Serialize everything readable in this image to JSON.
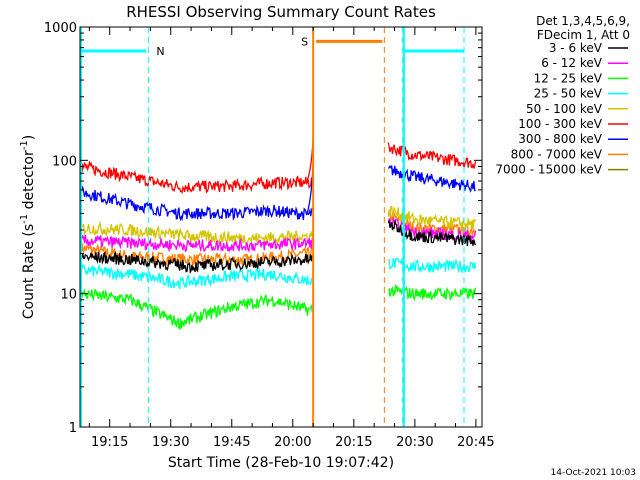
{
  "chart_data": {
    "type": "line",
    "title": "RHESSI Observing Summary Count Rates",
    "xlabel": "Start Time (28-Feb-10 19:07:42)",
    "ylabel_parts": [
      "Count Rate (s",
      "-1",
      " detector",
      "-1",
      ")"
    ],
    "ylabel": "Count Rate (s-1 detector-1)",
    "y_scale": "log",
    "ylim": [
      1,
      1000
    ],
    "y_ticks": [
      {
        "value": 1,
        "label": "1"
      },
      {
        "value": 10,
        "label": "10"
      },
      {
        "value": 100,
        "label": "100"
      },
      {
        "value": 1000,
        "label": "1000"
      }
    ],
    "xlim": [
      "19:07:42",
      "20:46:30"
    ],
    "x_ticks": [
      "19:15",
      "19:30",
      "19:45",
      "20:00",
      "20:15",
      "20:30",
      "20:45"
    ],
    "legend_header": [
      "Det 1,3,4,5,6,9,",
      "FDecim 1, Att 0"
    ],
    "legend_position": "right",
    "series": [
      {
        "name": "3 - 6 keV",
        "color": "#000000",
        "points": [
          [
            "19:08",
            19
          ],
          [
            "19:20",
            18
          ],
          [
            "19:35",
            16
          ],
          [
            "19:50",
            17
          ],
          [
            "20:04",
            18
          ],
          [
            "20:24",
            33
          ],
          [
            "20:30",
            27
          ],
          [
            "20:45",
            25
          ]
        ]
      },
      {
        "name": "6 - 12 keV",
        "color": "#ff00ff",
        "points": [
          [
            "19:08",
            25
          ],
          [
            "19:20",
            24
          ],
          [
            "19:35",
            23
          ],
          [
            "19:50",
            23
          ],
          [
            "20:04",
            24
          ],
          [
            "20:24",
            34
          ],
          [
            "20:30",
            29
          ],
          [
            "20:45",
            27
          ]
        ]
      },
      {
        "name": "12 - 25 keV",
        "color": "#00ff00",
        "points": [
          [
            "19:08",
            10
          ],
          [
            "19:20",
            9
          ],
          [
            "19:32",
            6
          ],
          [
            "19:45",
            8
          ],
          [
            "19:55",
            9
          ],
          [
            "20:04",
            7.5
          ],
          [
            "20:24",
            10.5
          ],
          [
            "20:30",
            10
          ],
          [
            "20:45",
            10
          ]
        ]
      },
      {
        "name": "25 - 50 keV",
        "color": "#00ffff",
        "points": [
          [
            "19:08",
            15
          ],
          [
            "19:20",
            14
          ],
          [
            "19:32",
            12
          ],
          [
            "19:45",
            13.5
          ],
          [
            "19:55",
            14
          ],
          [
            "20:04",
            12.5
          ],
          [
            "20:24",
            17
          ],
          [
            "20:30",
            16
          ],
          [
            "20:45",
            16
          ]
        ]
      },
      {
        "name": "50 - 100 keV",
        "color": "#d4c400",
        "points": [
          [
            "19:08",
            31
          ],
          [
            "19:20",
            30
          ],
          [
            "19:35",
            27
          ],
          [
            "19:50",
            26
          ],
          [
            "20:04",
            27
          ],
          [
            "20:24",
            42
          ],
          [
            "20:30",
            36
          ],
          [
            "20:45",
            33
          ]
        ]
      },
      {
        "name": "100 - 300 keV",
        "color": "#ff0000",
        "points": [
          [
            "19:08",
            90
          ],
          [
            "19:20",
            75
          ],
          [
            "19:32",
            63
          ],
          [
            "19:45",
            64
          ],
          [
            "19:55",
            68
          ],
          [
            "20:04",
            68
          ],
          [
            "20:24",
            125
          ],
          [
            "20:30",
            110
          ],
          [
            "20:45",
            95
          ]
        ]
      },
      {
        "name": "300 - 800 keV",
        "color": "#0000ff",
        "points": [
          [
            "19:08",
            58
          ],
          [
            "19:20",
            47
          ],
          [
            "19:32",
            40
          ],
          [
            "19:45",
            40
          ],
          [
            "19:55",
            42
          ],
          [
            "20:04",
            39
          ],
          [
            "20:24",
            85
          ],
          [
            "20:30",
            75
          ],
          [
            "20:45",
            63
          ]
        ]
      },
      {
        "name": "800 - 7000 keV",
        "color": "#ff7f00",
        "points": [
          [
            "19:08",
            22
          ],
          [
            "19:20",
            19
          ],
          [
            "19:35",
            18
          ],
          [
            "19:50",
            18
          ],
          [
            "20:04",
            20
          ],
          [
            "20:24",
            38
          ],
          [
            "20:30",
            31
          ],
          [
            "20:45",
            30
          ]
        ]
      },
      {
        "name": "7000 - 15000 keV",
        "color": "#7f7f00",
        "points": []
      }
    ],
    "intervals": [
      {
        "label": "N",
        "start": "19:24:30",
        "end": "20:27:00",
        "color": "#00ffff",
        "bar_level": 660
      },
      {
        "label": "S",
        "start": "20:05:00",
        "end": "20:22:30",
        "color": "#ff7f00",
        "bar_level": 780
      }
    ],
    "data_gap": [
      "20:05:00",
      "20:23:30"
    ],
    "spike": {
      "time": "20:05:00",
      "peak": 155
    }
  },
  "footer": {
    "date": "14-Oct-2021 10:03"
  }
}
